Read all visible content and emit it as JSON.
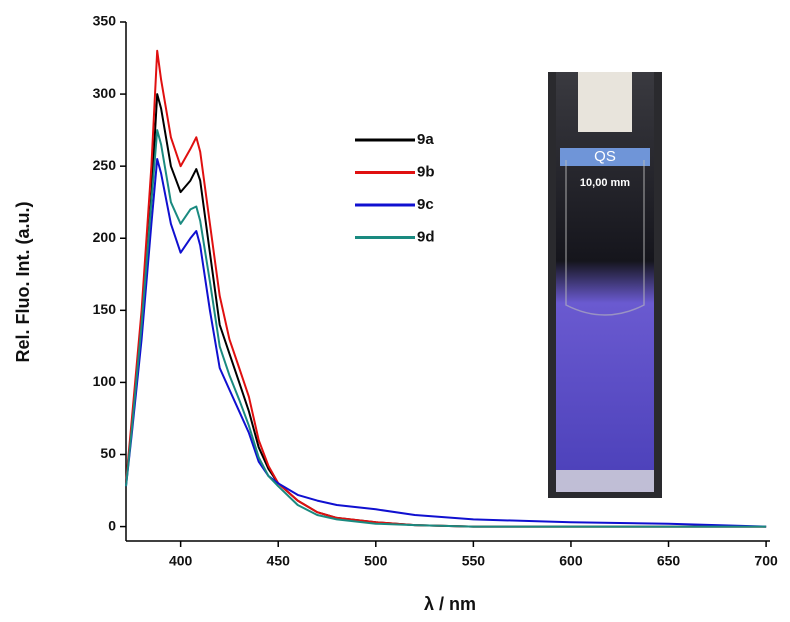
{
  "chart_data": {
    "type": "line",
    "xlabel": "λ / nm",
    "ylabel": "Rel. Fluo. Int. (a.u.)",
    "xlim": [
      372,
      702
    ],
    "ylim": [
      -10,
      350
    ],
    "xticks": [
      400,
      450,
      500,
      550,
      600,
      650,
      700
    ],
    "yticks": [
      0,
      50,
      100,
      150,
      200,
      250,
      300,
      350
    ],
    "grid": false,
    "x": [
      372,
      375,
      380,
      385,
      388,
      390,
      395,
      400,
      405,
      408,
      410,
      415,
      420,
      425,
      430,
      435,
      440,
      445,
      450,
      460,
      470,
      480,
      500,
      520,
      550,
      600,
      650,
      700
    ],
    "series": [
      {
        "name": "9a",
        "color": "#000000",
        "values": [
          30,
          70,
          140,
          230,
          300,
          290,
          250,
          232,
          240,
          248,
          240,
          190,
          140,
          120,
          100,
          80,
          55,
          40,
          30,
          18,
          10,
          6,
          3,
          1,
          0,
          0,
          0,
          0
        ]
      },
      {
        "name": "9b",
        "color": "#e01010",
        "values": [
          30,
          75,
          150,
          250,
          330,
          310,
          270,
          250,
          262,
          270,
          260,
          210,
          160,
          130,
          110,
          90,
          60,
          42,
          30,
          18,
          10,
          6,
          3,
          1,
          0,
          0,
          0,
          0
        ]
      },
      {
        "name": "9c",
        "color": "#1010d0",
        "values": [
          28,
          65,
          130,
          210,
          255,
          245,
          210,
          190,
          200,
          205,
          195,
          150,
          110,
          95,
          80,
          65,
          45,
          35,
          30,
          22,
          18,
          15,
          12,
          8,
          5,
          3,
          2,
          0
        ]
      },
      {
        "name": "9d",
        "color": "#1a8a80",
        "values": [
          28,
          68,
          140,
          225,
          275,
          265,
          225,
          210,
          220,
          222,
          212,
          170,
          125,
          105,
          88,
          70,
          48,
          35,
          28,
          15,
          8,
          5,
          2,
          1,
          0,
          0,
          0,
          0
        ]
      }
    ],
    "annotations": [
      "QS",
      "10,00 mm"
    ]
  }
}
